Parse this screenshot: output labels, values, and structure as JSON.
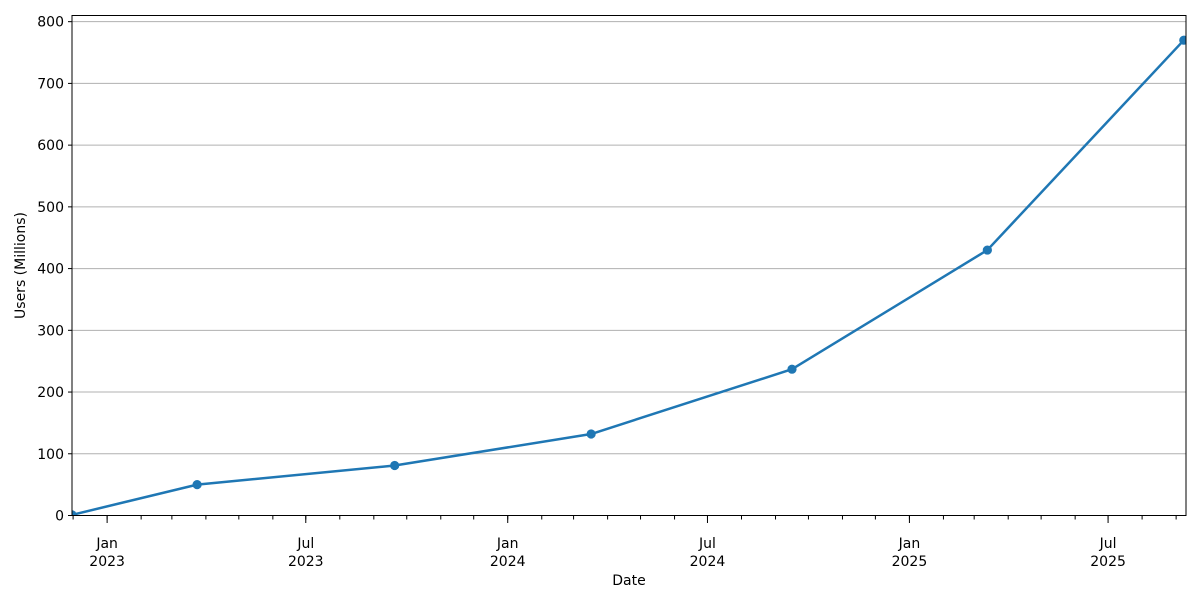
{
  "chart_data": {
    "type": "line",
    "title": "",
    "xlabel": "Date",
    "ylabel": "Users (Millions)",
    "grid": "horizontal-only",
    "legend": "none",
    "background": "#ffffff",
    "colors": {
      "line": "#1f77b4",
      "marker": "#1f77b4",
      "grid": "#b0b0b0",
      "spine": "#000000",
      "text": "#000000"
    },
    "x_axis": {
      "range": [
        "2022-11-30",
        "2025-09-10"
      ],
      "minor_tick_interval": "month",
      "major_ticks": [
        {
          "month": "Jan",
          "year": "2023",
          "date": "2023-01-01"
        },
        {
          "month": "Jul",
          "year": "2023",
          "date": "2023-07-01"
        },
        {
          "month": "Jan",
          "year": "2024",
          "date": "2024-01-01"
        },
        {
          "month": "Jul",
          "year": "2024",
          "date": "2024-07-01"
        },
        {
          "month": "Jan",
          "year": "2025",
          "date": "2025-01-01"
        },
        {
          "month": "Jul",
          "year": "2025",
          "date": "2025-07-01"
        }
      ]
    },
    "y_axis": {
      "range": [
        0,
        810
      ],
      "ticks": [
        0,
        100,
        200,
        300,
        400,
        500,
        600,
        700,
        800
      ]
    },
    "series": [
      {
        "name": "Users",
        "color": "#1f77b4",
        "marker": "circle",
        "x": [
          "2022-11-30",
          "2023-03-24",
          "2023-09-20",
          "2024-03-17",
          "2024-09-16",
          "2025-03-13",
          "2025-09-08"
        ],
        "y": [
          1,
          50,
          81,
          132,
          237,
          430,
          770
        ]
      }
    ]
  }
}
